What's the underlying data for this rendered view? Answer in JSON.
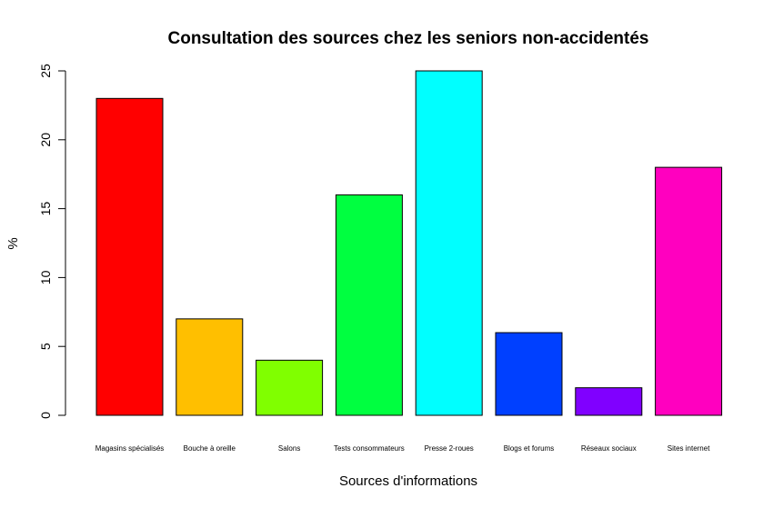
{
  "chart_data": {
    "type": "bar",
    "title": "Consultation des sources chez les seniors non-accidentés",
    "xlabel": "Sources d'informations",
    "ylabel": "%",
    "ylim": [
      0,
      25
    ],
    "yticks": [
      0,
      5,
      10,
      15,
      20,
      25
    ],
    "grid": false,
    "categories": [
      "Magasins spécialisés",
      "Bouche à oreille",
      "Salons",
      "Tests consommateurs",
      "Presse 2-roues",
      "Blogs et forums",
      "Réseaux sociaux",
      "Sites internet"
    ],
    "values": [
      23,
      7,
      4,
      16,
      25,
      6,
      2,
      18
    ],
    "colors": [
      "#FF0000",
      "#FFBF00",
      "#80FF00",
      "#00FF40",
      "#00FFFF",
      "#0040FF",
      "#8000FF",
      "#FF00BF"
    ]
  }
}
